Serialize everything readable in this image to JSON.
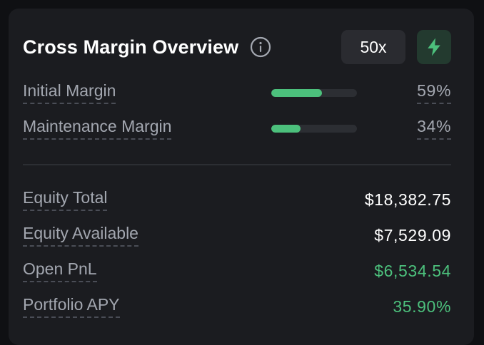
{
  "header": {
    "title": "Cross Margin Overview",
    "leverage_label": "50x"
  },
  "margins": [
    {
      "label": "Initial Margin",
      "percent_text": "59%",
      "fill_fraction": 0.59
    },
    {
      "label": "Maintenance Margin",
      "percent_text": "34%",
      "fill_fraction": 0.34
    }
  ],
  "stats": [
    {
      "label": "Equity Total",
      "value": "$18,382.75"
    },
    {
      "label": "Equity Available",
      "value": "$7,529.09"
    },
    {
      "label": "Open PnL",
      "value": "$6,534.54"
    },
    {
      "label": "Portfolio APY",
      "value": "35.90%"
    }
  ],
  "colors": {
    "accent_green": "#4cc07c",
    "background": "#1b1c20",
    "muted_text": "#a3a7b0"
  },
  "icons": {
    "info": "info-circle-icon",
    "bolt": "lightning-bolt-icon"
  }
}
